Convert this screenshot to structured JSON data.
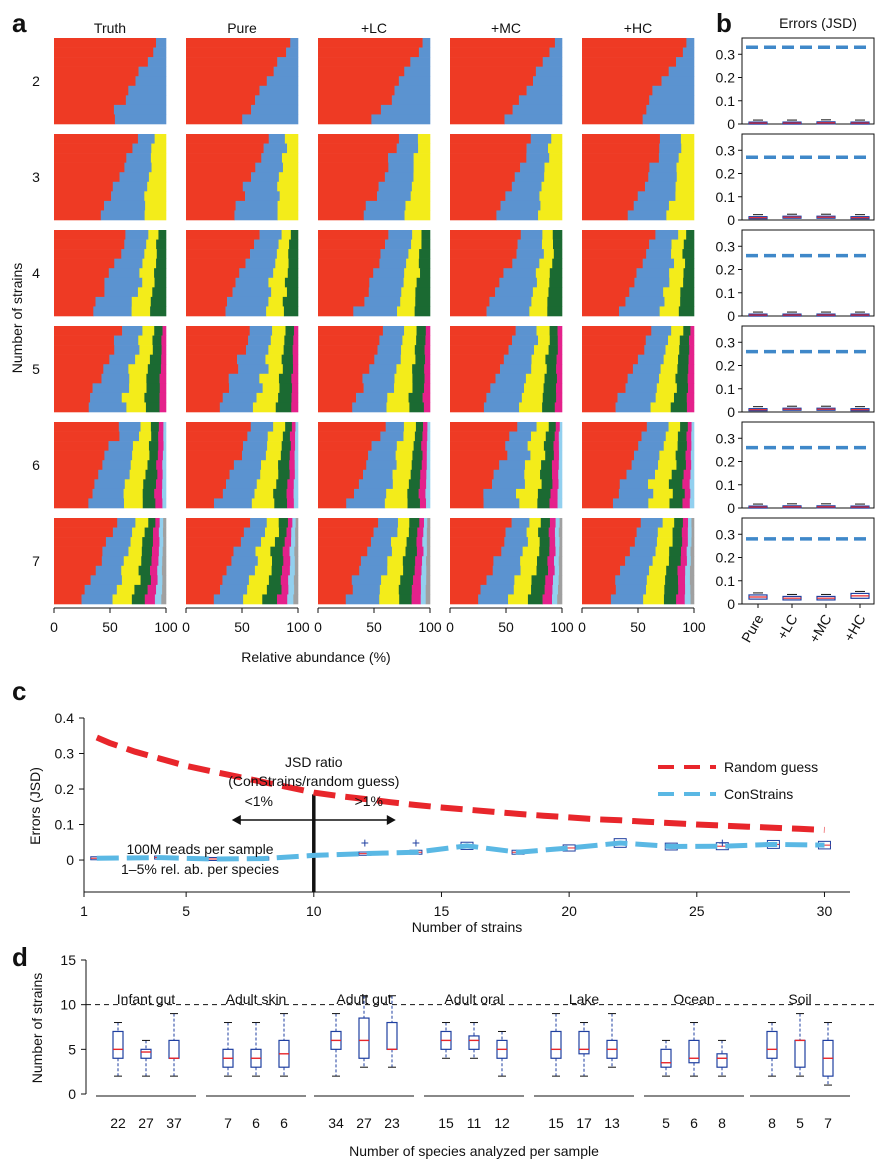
{
  "colors": {
    "strain1": "#ee3a24",
    "strain2": "#5b93d0",
    "strain3": "#f3ec1a",
    "strain4": "#1b6a32",
    "strain5": "#e4218b",
    "strain6": "#92d0ef",
    "strain7": "#a0a0a0",
    "random_dash": "#e8262b",
    "constrains_dash": "#5ab8e4",
    "jsd_baseline": "#3f88c9",
    "box": "#1f3fa0",
    "median": "#e8262b"
  },
  "panel_labels": {
    "a": "a",
    "b": "b",
    "c": "c",
    "d": "d"
  },
  "chart_data": [
    {
      "panel": "a",
      "type": "bar",
      "orientation": "horizontal-stacked",
      "columns": [
        "Truth",
        "Pure",
        "+LC",
        "+MC",
        "+HC"
      ],
      "rows": [
        "2",
        "3",
        "4",
        "5",
        "6",
        "7"
      ],
      "ylabel": "Number of strains",
      "xlabel": "Relative abundance (%)",
      "xticks": [
        "0",
        "50",
        "100"
      ],
      "xlim": [
        0,
        100
      ],
      "typical_composition": [
        {
          "strains": 2,
          "values": [
            72,
            28
          ]
        },
        {
          "strains": 3,
          "values": [
            58,
            26,
            16
          ]
        },
        {
          "strains": 4,
          "values": [
            50,
            28,
            12,
            10
          ]
        },
        {
          "strains": 5,
          "values": [
            45,
            25,
            15,
            10,
            5
          ]
        },
        {
          "strains": 6,
          "values": [
            43,
            25,
            15,
            9,
            5,
            3
          ]
        },
        {
          "strains": 7,
          "values": [
            40,
            23,
            14,
            10,
            6,
            4,
            3
          ]
        }
      ]
    },
    {
      "panel": "b",
      "type": "scatter",
      "title": "Errors (JSD)",
      "categories": [
        "Pure",
        "+LC",
        "+MC",
        "+HC"
      ],
      "yticks": [
        "0",
        "0.1",
        "0.2",
        "0.3"
      ],
      "ylim": [
        0,
        0.37
      ],
      "random_guess_baseline": [
        0.33,
        0.27,
        0.26,
        0.26,
        0.26,
        0.28
      ],
      "median_errors": [
        [
          0.004,
          0.004,
          0.005,
          0.004
        ],
        [
          0.01,
          0.012,
          0.012,
          0.01
        ],
        [
          0.004,
          0.004,
          0.004,
          0.004
        ],
        [
          0.01,
          0.012,
          0.012,
          0.01
        ],
        [
          0.004,
          0.005,
          0.005,
          0.004
        ],
        [
          0.03,
          0.025,
          0.025,
          0.035
        ]
      ]
    },
    {
      "panel": "c",
      "type": "line",
      "ylabel": "Errors (JSD)",
      "xlabel": "Number of strains",
      "xticks": [
        "1",
        "5",
        "10",
        "15",
        "20",
        "25",
        "30"
      ],
      "yticks": [
        "0",
        "0.1",
        "0.2",
        "0.3",
        "0.4"
      ],
      "xlim": [
        1,
        31
      ],
      "ylim": [
        -0.09,
        0.4
      ],
      "series": [
        {
          "name": "Random guess",
          "x": [
            1.5,
            2,
            3,
            4,
            5,
            6,
            7,
            8,
            9,
            10,
            11,
            12,
            13,
            14,
            15,
            16,
            17,
            18,
            19,
            20,
            21,
            22,
            23,
            24,
            25,
            26,
            27,
            28,
            29,
            30
          ],
          "values": [
            0.345,
            0.33,
            0.305,
            0.285,
            0.265,
            0.25,
            0.235,
            0.22,
            0.205,
            0.19,
            0.18,
            0.172,
            0.163,
            0.155,
            0.148,
            0.142,
            0.136,
            0.13,
            0.125,
            0.12,
            0.115,
            0.112,
            0.108,
            0.104,
            0.1,
            0.097,
            0.094,
            0.091,
            0.088,
            0.085
          ]
        },
        {
          "name": "ConStrains",
          "x": [
            1.5,
            4,
            6,
            8,
            10,
            12,
            14,
            16,
            18,
            20,
            22,
            24,
            26,
            28,
            30
          ],
          "values": [
            0.005,
            0.007,
            0.003,
            0.004,
            0.013,
            0.018,
            0.022,
            0.04,
            0.022,
            0.034,
            0.048,
            0.038,
            0.039,
            0.044,
            0.042
          ]
        }
      ],
      "annotation_title": "JSD ratio",
      "annotation_subtitle": "(ConStrains/random guess)",
      "annotation_left": "<1%",
      "annotation_right": ">1%",
      "threshold_x": 10,
      "note_line1": "100M reads per sample",
      "note_line2": "1–5% rel. ab. per species"
    },
    {
      "panel": "d",
      "type": "scatter",
      "ylabel": "Number of strains",
      "xlabel": "Number of species analyzed per sample",
      "yticks": [
        "0",
        "5",
        "10",
        "15"
      ],
      "ylim": [
        0,
        15
      ],
      "reference_line": 10,
      "groups": [
        {
          "name": "Infant gut",
          "counts": [
            "22",
            "27",
            "37"
          ],
          "boxes": [
            {
              "min": 2,
              "q1": 4,
              "med": 5,
              "q3": 7,
              "max": 8
            },
            {
              "min": 2,
              "q1": 4,
              "med": 4.7,
              "q3": 5,
              "max": 6
            },
            {
              "min": 2,
              "q1": 4,
              "med": 4,
              "q3": 6,
              "max": 9
            }
          ]
        },
        {
          "name": "Adult skin",
          "counts": [
            "7",
            "6",
            "6"
          ],
          "boxes": [
            {
              "min": 2,
              "q1": 3,
              "med": 4,
              "q3": 5,
              "max": 8
            },
            {
              "min": 2,
              "q1": 3,
              "med": 4,
              "q3": 5,
              "max": 8
            },
            {
              "min": 2,
              "q1": 3,
              "med": 4.5,
              "q3": 6,
              "max": 9
            }
          ]
        },
        {
          "name": "Adult gut",
          "counts": [
            "34",
            "27",
            "23"
          ],
          "boxes": [
            {
              "min": 2,
              "q1": 5,
              "med": 6,
              "q3": 7,
              "max": 9
            },
            {
              "min": 3,
              "q1": 4,
              "med": 6,
              "q3": 8.5,
              "max": 11
            },
            {
              "min": 3,
              "q1": 5,
              "med": 5,
              "q3": 8,
              "max": 11
            }
          ]
        },
        {
          "name": "Adult oral",
          "counts": [
            "15",
            "11",
            "12"
          ],
          "boxes": [
            {
              "min": 4,
              "q1": 5,
              "med": 6,
              "q3": 7,
              "max": 8
            },
            {
              "min": 4,
              "q1": 5,
              "med": 6,
              "q3": 6.5,
              "max": 8
            },
            {
              "min": 2,
              "q1": 4,
              "med": 5,
              "q3": 6,
              "max": 7
            }
          ]
        },
        {
          "name": "Lake",
          "counts": [
            "15",
            "17",
            "13"
          ],
          "boxes": [
            {
              "min": 2,
              "q1": 4,
              "med": 5,
              "q3": 7,
              "max": 9
            },
            {
              "min": 2,
              "q1": 4.5,
              "med": 5,
              "q3": 7,
              "max": 8
            },
            {
              "min": 3,
              "q1": 4,
              "med": 5,
              "q3": 6,
              "max": 9
            }
          ]
        },
        {
          "name": "Ocean",
          "counts": [
            "5",
            "6",
            "8"
          ],
          "boxes": [
            {
              "min": 2,
              "q1": 3,
              "med": 3.5,
              "q3": 5,
              "max": 6
            },
            {
              "min": 2,
              "q1": 3.5,
              "med": 4,
              "q3": 6,
              "max": 8
            },
            {
              "min": 2,
              "q1": 3,
              "med": 4,
              "q3": 4.5,
              "max": 6
            }
          ]
        },
        {
          "name": "Soil",
          "counts": [
            "8",
            "5",
            "7"
          ],
          "boxes": [
            {
              "min": 2,
              "q1": 4,
              "med": 5,
              "q3": 7,
              "max": 8
            },
            {
              "min": 2,
              "q1": 3,
              "med": 6,
              "q3": 6,
              "max": 9
            },
            {
              "min": 1,
              "q1": 2,
              "med": 4,
              "q3": 6,
              "max": 8
            }
          ]
        }
      ]
    }
  ]
}
